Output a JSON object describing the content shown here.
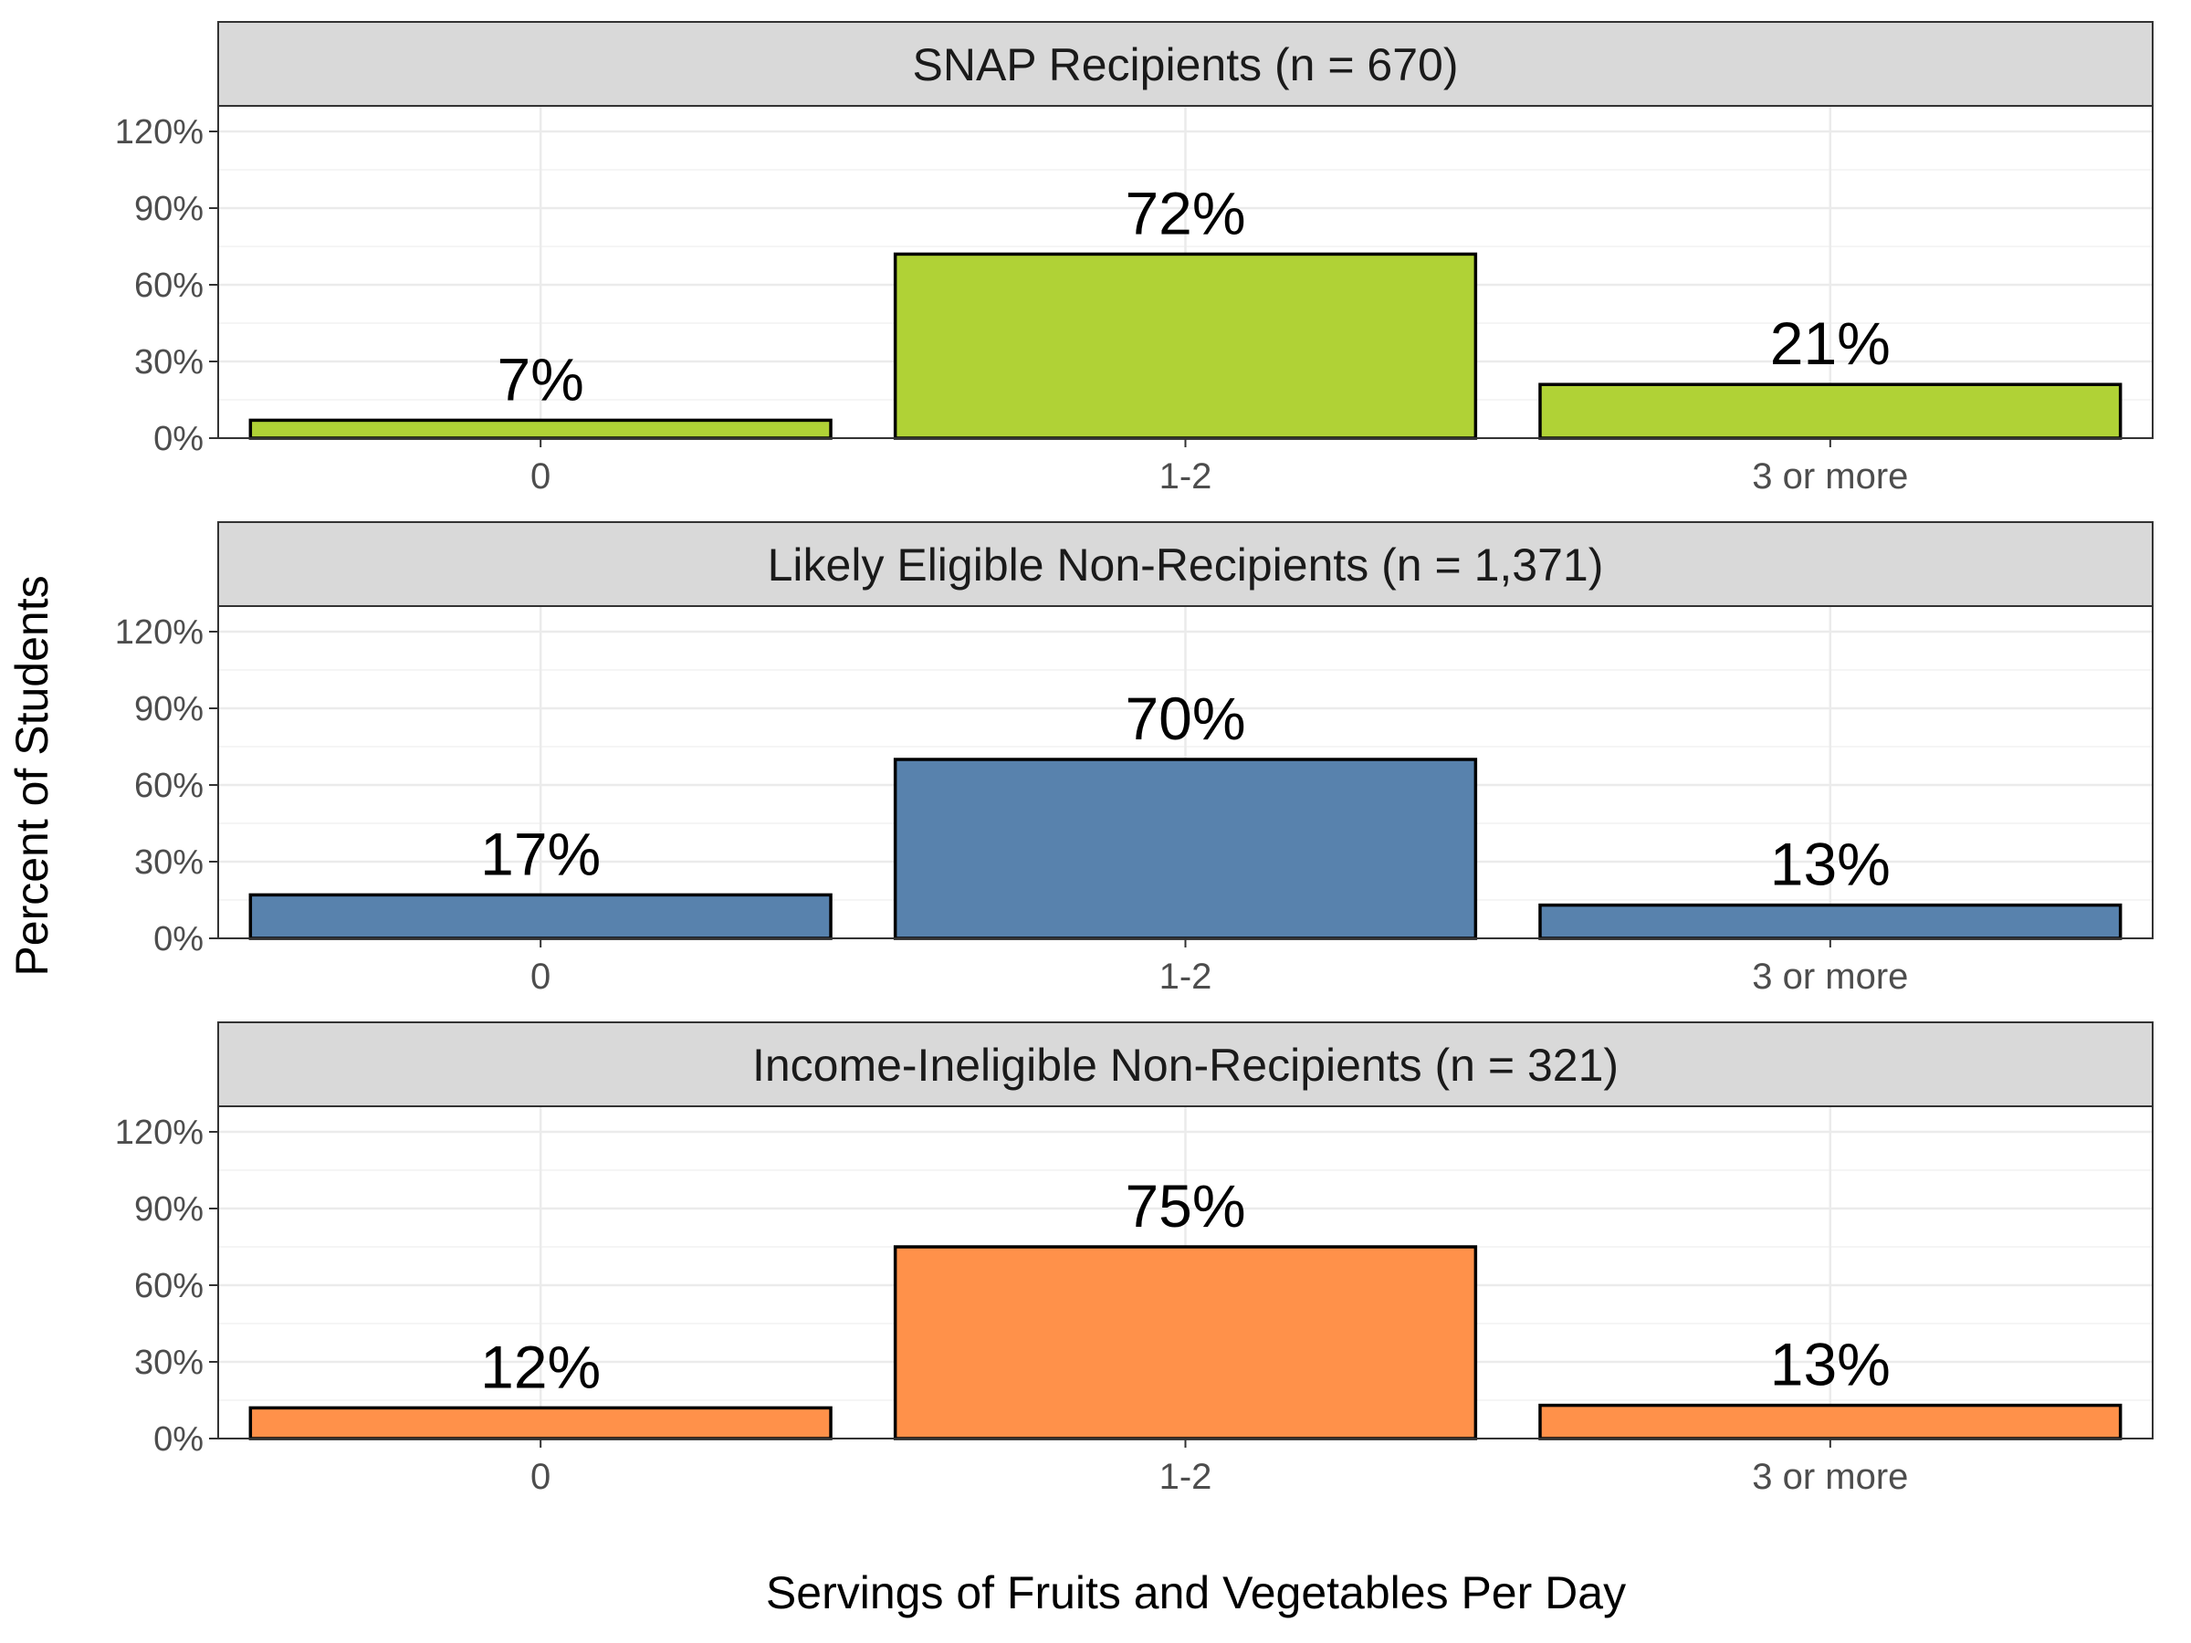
{
  "chart_data": {
    "type": "bar",
    "categories": [
      "0",
      "1-2",
      "3 or more"
    ],
    "ylim": [
      0,
      130
    ],
    "ytick_values": [
      0,
      30,
      60,
      90,
      120
    ],
    "ytick_labels": [
      "0%",
      "30%",
      "60%",
      "90%",
      "120%"
    ],
    "xlabel": "Servings of Fruits and Vegetables Per Day",
    "ylabel": "Percent of Students",
    "grid": true,
    "legend": "none",
    "panels": [
      {
        "title": "SNAP Recipients (n = 670)",
        "color": "#b0d236",
        "values": [
          7,
          72,
          21
        ],
        "labels": [
          "7%",
          "72%",
          "21%"
        ]
      },
      {
        "title": "Likely Eligible Non-Recipients (n = 1,371)",
        "color": "#5882ad",
        "values": [
          17,
          70,
          13
        ],
        "labels": [
          "17%",
          "70%",
          "13%"
        ]
      },
      {
        "title": "Income-Ineligible Non-Recipients (n = 321)",
        "color": "#ff914a",
        "values": [
          12,
          75,
          13
        ],
        "labels": [
          "12%",
          "75%",
          "13%"
        ]
      }
    ]
  }
}
